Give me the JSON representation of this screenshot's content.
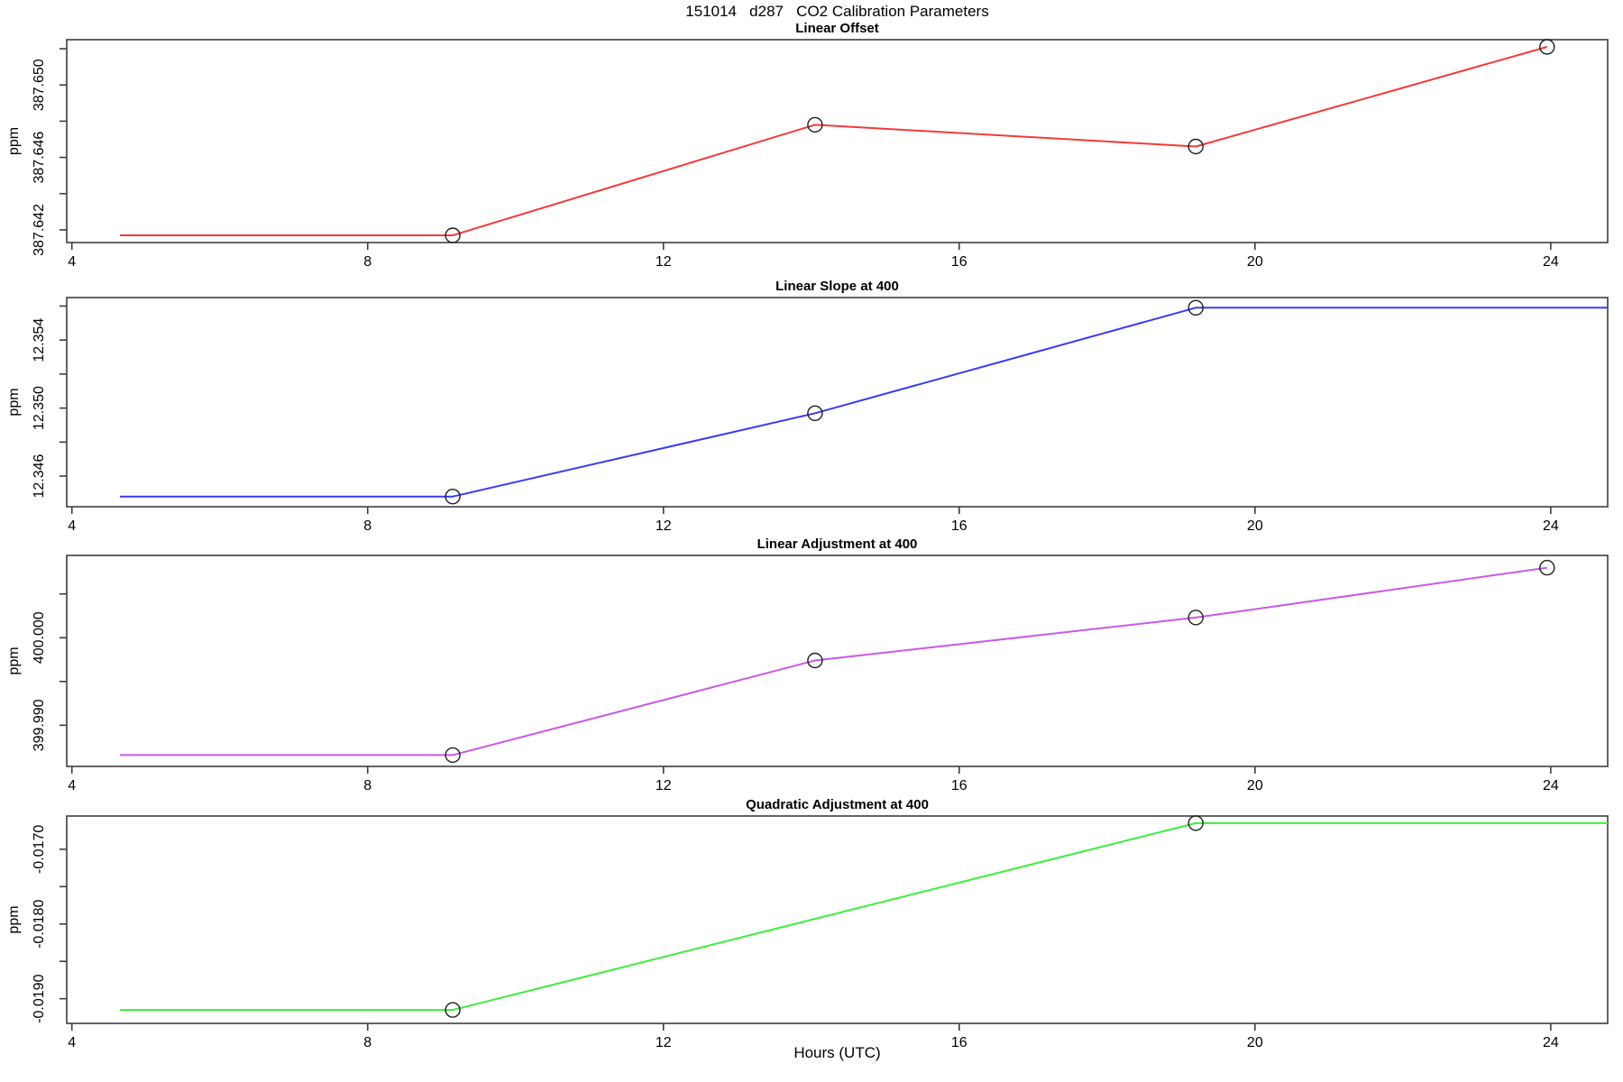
{
  "main_title": "151014   d287   CO2 Calibration Parameters",
  "xlabel": "Hours (UTC)",
  "x_axis": {
    "ticks": [
      4,
      8,
      12,
      16,
      20,
      24
    ],
    "xlim": [
      3.93,
      24.77
    ]
  },
  "chart_data": [
    {
      "type": "line",
      "title": "Linear Offset",
      "ylabel": "ppm",
      "color": "#f43a3a",
      "marker_color": "#1f1f1f",
      "ylim": [
        387.6413,
        387.6525
      ],
      "yticks": [
        {
          "v": 387.642,
          "label": "387.642"
        },
        {
          "v": 387.644,
          "label": ""
        },
        {
          "v": 387.646,
          "label": "387.646"
        },
        {
          "v": 387.648,
          "label": ""
        },
        {
          "v": 387.65,
          "label": "387.650"
        },
        {
          "v": 387.652,
          "label": ""
        }
      ],
      "points": [
        [
          4.65,
          387.6417
        ],
        [
          9.15,
          387.6417
        ],
        [
          14.05,
          387.6478
        ],
        [
          19.2,
          387.6466
        ],
        [
          23.95,
          387.6521
        ]
      ],
      "marker_indices": [
        1,
        2,
        3,
        4
      ]
    },
    {
      "type": "line",
      "title": "Linear Slope at 400",
      "ylabel": "ppm",
      "color": "#3a3af2",
      "marker_color": "#1f1f1f",
      "ylim": [
        12.3442,
        12.3565
      ],
      "yticks": [
        {
          "v": 12.346,
          "label": "12.346"
        },
        {
          "v": 12.348,
          "label": ""
        },
        {
          "v": 12.35,
          "label": "12.350"
        },
        {
          "v": 12.352,
          "label": ""
        },
        {
          "v": 12.354,
          "label": "12.354"
        },
        {
          "v": 12.356,
          "label": ""
        }
      ],
      "points": [
        [
          4.65,
          12.3448
        ],
        [
          9.15,
          12.3448
        ],
        [
          14.05,
          12.3497
        ],
        [
          19.2,
          12.3559
        ],
        [
          24.77,
          12.3559
        ]
      ],
      "marker_indices": [
        1,
        2,
        3
      ]
    },
    {
      "type": "line",
      "title": "Linear Adjustment at 400",
      "ylabel": "ppm",
      "color": "#c85ae8",
      "marker_color": "#1f1f1f",
      "ylim": [
        399.9853,
        400.0094
      ],
      "yticks": [
        {
          "v": 399.99,
          "label": "399.990"
        },
        {
          "v": 399.995,
          "label": ""
        },
        {
          "v": 400.0,
          "label": "400.000"
        },
        {
          "v": 400.005,
          "label": ""
        }
      ],
      "points": [
        [
          4.65,
          399.9866
        ],
        [
          9.15,
          399.9866
        ],
        [
          14.05,
          399.9974
        ],
        [
          19.2,
          400.0023
        ],
        [
          23.95,
          400.008
        ]
      ],
      "marker_indices": [
        1,
        2,
        3,
        4
      ]
    },
    {
      "type": "line",
      "title": "Quadratic Adjustment at 400",
      "ylabel": "ppm",
      "color": "#3cee3c",
      "marker_color": "#1f1f1f",
      "ylim": [
        -0.01933,
        -0.016555
      ],
      "yticks": [
        {
          "v": -0.019,
          "label": "-0.0190"
        },
        {
          "v": -0.0185,
          "label": ""
        },
        {
          "v": -0.018,
          "label": "-0.0180"
        },
        {
          "v": -0.0175,
          "label": ""
        },
        {
          "v": -0.017,
          "label": "-0.0170"
        }
      ],
      "points": [
        [
          4.65,
          -0.01915
        ],
        [
          9.15,
          -0.01915
        ],
        [
          19.2,
          -0.01665
        ],
        [
          24.77,
          -0.01665
        ]
      ],
      "marker_indices": [
        1,
        2
      ]
    }
  ]
}
